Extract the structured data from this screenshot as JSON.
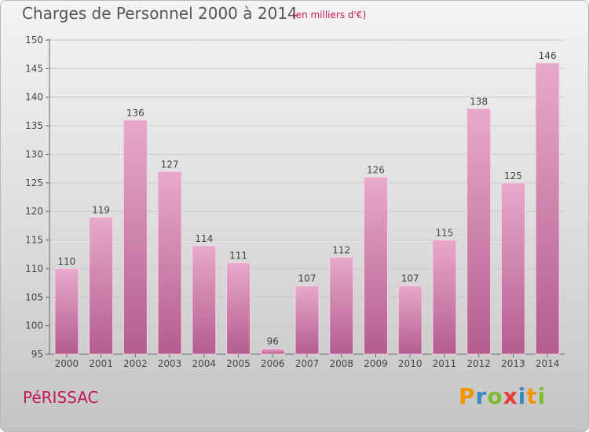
{
  "header": {
    "title": "Charges de Personnel 2000 à 2014",
    "subtitle": "(en milliers d'€)"
  },
  "footer": {
    "place": "PéRISSAC",
    "logo": [
      "P",
      "r",
      "o",
      "x",
      "i",
      "t",
      "i"
    ]
  },
  "colors": {
    "bar_top": "#e7a9cb",
    "bar_bottom": "#b45d8e",
    "accent": "#c2185b",
    "logo_letters": [
      "#f29400",
      "#3b88c3",
      "#7dba2f",
      "#e53935",
      "#3b88c3",
      "#f29400",
      "#7dba2f"
    ]
  },
  "chart_data": {
    "type": "bar",
    "title": "Charges de Personnel 2000 à 2014",
    "subtitle": "(en milliers d'€)",
    "categories": [
      "2000",
      "2001",
      "2002",
      "2003",
      "2004",
      "2005",
      "2006",
      "2007",
      "2008",
      "2009",
      "2010",
      "2011",
      "2012",
      "2013",
      "2014"
    ],
    "values": [
      110,
      119,
      136,
      127,
      114,
      111,
      96,
      107,
      112,
      126,
      107,
      115,
      138,
      125,
      146
    ],
    "ylim": [
      95,
      150
    ],
    "yticks": [
      95,
      100,
      105,
      110,
      115,
      120,
      125,
      130,
      135,
      140,
      145,
      150
    ],
    "grid": true,
    "legend": "none"
  }
}
